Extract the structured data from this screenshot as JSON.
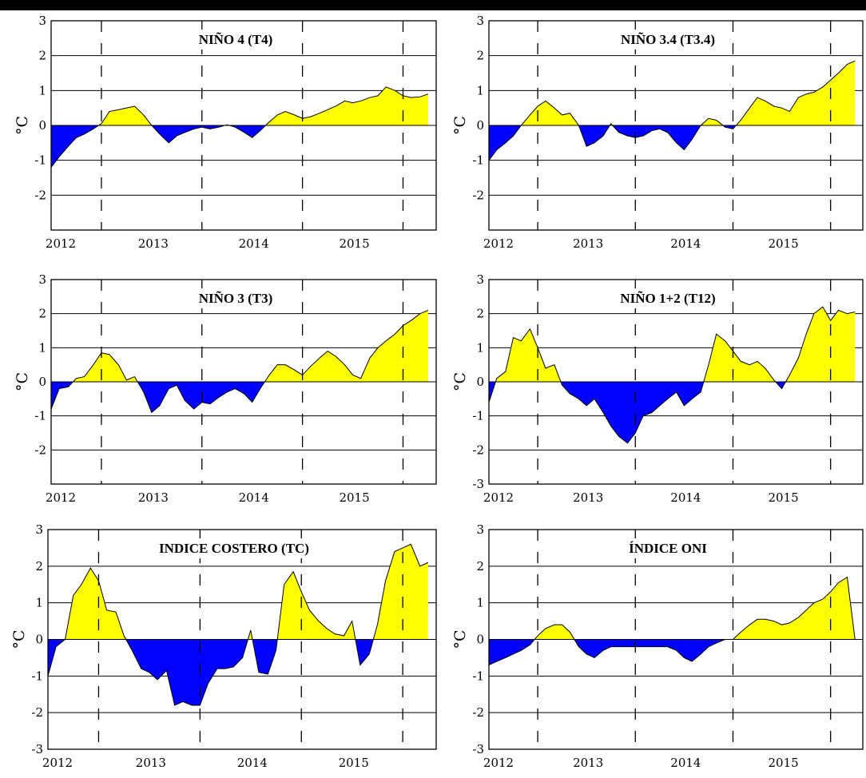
{
  "chart_data": [
    {
      "type": "area",
      "title": "NIÑO 4 (T4)",
      "ylabel": "°C",
      "xlim": [
        2012,
        2015.83
      ],
      "ylim": [
        -3,
        3
      ],
      "yticks": [
        3,
        2,
        1,
        0,
        -1,
        -2
      ],
      "xticks": [
        "2012",
        "2013",
        "2014",
        "2015"
      ],
      "dashed_x": [
        2012.5,
        2013.5,
        2014.5,
        2015.5
      ],
      "colors": {
        "positive": "#ffff00",
        "negative": "#0000ff"
      },
      "x": [
        2012.0,
        2012.08,
        2012.17,
        2012.25,
        2012.33,
        2012.42,
        2012.5,
        2012.58,
        2012.67,
        2012.75,
        2012.83,
        2012.92,
        2013.0,
        2013.08,
        2013.17,
        2013.25,
        2013.33,
        2013.42,
        2013.5,
        2013.58,
        2013.67,
        2013.75,
        2013.83,
        2013.92,
        2014.0,
        2014.08,
        2014.17,
        2014.25,
        2014.33,
        2014.42,
        2014.5,
        2014.58,
        2014.67,
        2014.75,
        2014.83,
        2014.92,
        2015.0,
        2015.08,
        2015.17,
        2015.25,
        2015.33,
        2015.42,
        2015.5,
        2015.58,
        2015.67,
        2015.75
      ],
      "y": [
        -1.2,
        -0.9,
        -0.6,
        -0.35,
        -0.25,
        -0.1,
        0.05,
        0.4,
        0.45,
        0.5,
        0.55,
        0.3,
        0.0,
        -0.25,
        -0.5,
        -0.3,
        -0.2,
        -0.1,
        -0.05,
        -0.1,
        -0.05,
        0.02,
        -0.05,
        -0.2,
        -0.35,
        -0.15,
        0.1,
        0.3,
        0.4,
        0.3,
        0.2,
        0.25,
        0.35,
        0.45,
        0.55,
        0.7,
        0.65,
        0.7,
        0.8,
        0.85,
        1.1,
        1.0,
        0.85,
        0.8,
        0.82,
        0.9
      ]
    },
    {
      "type": "area",
      "title": "NIÑO 3.4 (T3.4)",
      "ylabel": "°C",
      "xlim": [
        2012,
        2015.83
      ],
      "ylim": [
        -3,
        3
      ],
      "yticks": [
        3,
        2,
        1,
        0,
        -1,
        -2
      ],
      "xticks": [
        "2012",
        "2013",
        "2014",
        "2015"
      ],
      "dashed_x": [
        2012.5,
        2013.5,
        2014.5,
        2015.5
      ],
      "colors": {
        "positive": "#ffff00",
        "negative": "#0000ff"
      },
      "x": [
        2012.0,
        2012.08,
        2012.17,
        2012.25,
        2012.33,
        2012.42,
        2012.5,
        2012.58,
        2012.67,
        2012.75,
        2012.83,
        2012.92,
        2013.0,
        2013.08,
        2013.17,
        2013.25,
        2013.33,
        2013.42,
        2013.5,
        2013.58,
        2013.67,
        2013.75,
        2013.83,
        2013.92,
        2014.0,
        2014.08,
        2014.17,
        2014.25,
        2014.33,
        2014.42,
        2014.5,
        2014.58,
        2014.67,
        2014.75,
        2014.83,
        2014.92,
        2015.0,
        2015.08,
        2015.17,
        2015.25,
        2015.33,
        2015.42,
        2015.5,
        2015.58,
        2015.67,
        2015.75
      ],
      "y": [
        -1.0,
        -0.7,
        -0.5,
        -0.3,
        0.0,
        0.3,
        0.55,
        0.7,
        0.5,
        0.3,
        0.35,
        0.0,
        -0.6,
        -0.5,
        -0.3,
        0.05,
        -0.2,
        -0.3,
        -0.35,
        -0.3,
        -0.15,
        -0.1,
        -0.2,
        -0.5,
        -0.7,
        -0.4,
        0.0,
        0.2,
        0.15,
        -0.05,
        -0.1,
        0.15,
        0.5,
        0.8,
        0.7,
        0.55,
        0.5,
        0.4,
        0.8,
        0.9,
        0.95,
        1.1,
        1.3,
        1.5,
        1.75,
        1.85
      ]
    },
    {
      "type": "area",
      "title": "NIÑO 3 (T3)",
      "ylabel": "°C",
      "xlim": [
        2012,
        2015.83
      ],
      "ylim": [
        -3,
        3
      ],
      "yticks": [
        3,
        2,
        1,
        0,
        -1,
        -2
      ],
      "xticks": [
        "2012",
        "2013",
        "2014",
        "2015"
      ],
      "dashed_x": [
        2012.5,
        2013.5,
        2014.5,
        2015.5
      ],
      "colors": {
        "positive": "#ffff00",
        "negative": "#0000ff"
      },
      "x": [
        2012.0,
        2012.08,
        2012.17,
        2012.25,
        2012.33,
        2012.42,
        2012.5,
        2012.58,
        2012.67,
        2012.75,
        2012.83,
        2012.92,
        2013.0,
        2013.08,
        2013.17,
        2013.25,
        2013.33,
        2013.42,
        2013.5,
        2013.58,
        2013.67,
        2013.75,
        2013.83,
        2013.92,
        2014.0,
        2014.08,
        2014.17,
        2014.25,
        2014.33,
        2014.42,
        2014.5,
        2014.58,
        2014.67,
        2014.75,
        2014.83,
        2014.92,
        2015.0,
        2015.08,
        2015.17,
        2015.25,
        2015.33,
        2015.42,
        2015.5,
        2015.58,
        2015.67,
        2015.75
      ],
      "y": [
        -0.8,
        -0.2,
        -0.15,
        0.1,
        0.15,
        0.5,
        0.85,
        0.8,
        0.5,
        0.05,
        0.15,
        -0.3,
        -0.9,
        -0.7,
        -0.2,
        -0.1,
        -0.55,
        -0.8,
        -0.6,
        -0.65,
        -0.45,
        -0.3,
        -0.2,
        -0.35,
        -0.6,
        -0.2,
        0.2,
        0.5,
        0.5,
        0.35,
        0.2,
        0.45,
        0.7,
        0.9,
        0.75,
        0.5,
        0.2,
        0.1,
        0.7,
        1.0,
        1.2,
        1.4,
        1.65,
        1.8,
        2.0,
        2.1
      ]
    },
    {
      "type": "area",
      "title": "NIÑO 1+2 (T12)",
      "ylabel": "°C",
      "xlim": [
        2012,
        2015.83
      ],
      "ylim": [
        -3,
        3
      ],
      "yticks": [
        3,
        2,
        1,
        0,
        -1,
        -2,
        -3
      ],
      "xticks": [
        "2012",
        "2013",
        "2014",
        "2015"
      ],
      "dashed_x": [
        2012.5,
        2013.5,
        2014.5,
        2015.5
      ],
      "colors": {
        "positive": "#ffff00",
        "negative": "#0000ff"
      },
      "x": [
        2012.0,
        2012.08,
        2012.17,
        2012.25,
        2012.33,
        2012.42,
        2012.5,
        2012.58,
        2012.67,
        2012.75,
        2012.83,
        2012.92,
        2013.0,
        2013.08,
        2013.17,
        2013.25,
        2013.33,
        2013.42,
        2013.5,
        2013.58,
        2013.67,
        2013.75,
        2013.83,
        2013.92,
        2014.0,
        2014.08,
        2014.17,
        2014.25,
        2014.33,
        2014.42,
        2014.5,
        2014.58,
        2014.67,
        2014.75,
        2014.83,
        2014.92,
        2015.0,
        2015.08,
        2015.17,
        2015.25,
        2015.33,
        2015.42,
        2015.5,
        2015.58,
        2015.67,
        2015.75
      ],
      "y": [
        -0.6,
        0.1,
        0.3,
        1.3,
        1.2,
        1.55,
        1.0,
        0.4,
        0.5,
        -0.1,
        -0.35,
        -0.5,
        -0.7,
        -0.5,
        -0.9,
        -1.3,
        -1.6,
        -1.8,
        -1.5,
        -1.0,
        -0.9,
        -0.7,
        -0.5,
        -0.3,
        -0.7,
        -0.5,
        -0.3,
        0.5,
        1.4,
        1.2,
        0.9,
        0.6,
        0.5,
        0.6,
        0.4,
        0.05,
        -0.2,
        0.2,
        0.7,
        1.4,
        2.0,
        2.2,
        1.8,
        2.1,
        2.0,
        2.05
      ]
    },
    {
      "type": "area",
      "title": "INDICE COSTERO (TC)",
      "ylabel": "°C",
      "xlim": [
        2012,
        2015.83
      ],
      "ylim": [
        -3,
        3
      ],
      "yticks": [
        3,
        2,
        1,
        0,
        -1,
        -2,
        -3
      ],
      "xticks": [
        "2012",
        "2013",
        "2014",
        "2015"
      ],
      "dashed_x": [
        2012.5,
        2013.5,
        2014.5,
        2015.5
      ],
      "colors": {
        "positive": "#ffff00",
        "negative": "#0000ff"
      },
      "x": [
        2012.0,
        2012.08,
        2012.17,
        2012.25,
        2012.33,
        2012.42,
        2012.5,
        2012.58,
        2012.67,
        2012.75,
        2012.83,
        2012.92,
        2013.0,
        2013.08,
        2013.17,
        2013.25,
        2013.33,
        2013.42,
        2013.5,
        2013.58,
        2013.67,
        2013.75,
        2013.83,
        2013.92,
        2014.0,
        2014.08,
        2014.17,
        2014.25,
        2014.33,
        2014.42,
        2014.5,
        2014.58,
        2014.67,
        2014.75,
        2014.83,
        2014.92,
        2015.0,
        2015.08,
        2015.17,
        2015.25,
        2015.33,
        2015.42,
        2015.5,
        2015.58,
        2015.67,
        2015.75
      ],
      "y": [
        -1.0,
        -0.2,
        0.0,
        1.2,
        1.5,
        1.95,
        1.6,
        0.8,
        0.75,
        0.1,
        -0.3,
        -0.8,
        -0.9,
        -1.1,
        -0.85,
        -1.8,
        -1.7,
        -1.8,
        -1.8,
        -1.2,
        -0.8,
        -0.8,
        -0.75,
        -0.5,
        0.25,
        -0.9,
        -0.95,
        -0.3,
        1.5,
        1.85,
        1.3,
        0.8,
        0.5,
        0.3,
        0.15,
        0.1,
        0.5,
        -0.7,
        -0.4,
        0.4,
        1.6,
        2.4,
        2.5,
        2.6,
        2.0,
        2.1
      ]
    },
    {
      "type": "area",
      "title": "ÍNDICE ONI",
      "ylabel": "°C",
      "xlim": [
        2012,
        2015.83
      ],
      "ylim": [
        -3,
        3
      ],
      "yticks": [
        3,
        2,
        1,
        0,
        -1,
        -2,
        -3
      ],
      "xticks": [
        "2012",
        "2013",
        "2014",
        "2015"
      ],
      "dashed_x": [
        2012.5,
        2013.5,
        2014.5,
        2015.5
      ],
      "colors": {
        "positive": "#ffff00",
        "negative": "#0000ff"
      },
      "x": [
        2012.0,
        2012.08,
        2012.17,
        2012.25,
        2012.33,
        2012.42,
        2012.5,
        2012.58,
        2012.67,
        2012.75,
        2012.83,
        2012.92,
        2013.0,
        2013.08,
        2013.17,
        2013.25,
        2013.33,
        2013.42,
        2013.5,
        2013.58,
        2013.67,
        2013.75,
        2013.83,
        2013.92,
        2014.0,
        2014.08,
        2014.17,
        2014.25,
        2014.33,
        2014.42,
        2014.5,
        2014.58,
        2014.67,
        2014.75,
        2014.83,
        2014.92,
        2015.0,
        2015.08,
        2015.17,
        2015.25,
        2015.33,
        2015.42,
        2015.5,
        2015.58,
        2015.67,
        2015.75
      ],
      "y": [
        -0.7,
        -0.6,
        -0.5,
        -0.4,
        -0.3,
        -0.15,
        0.1,
        0.3,
        0.4,
        0.4,
        0.2,
        -0.2,
        -0.4,
        -0.5,
        -0.3,
        -0.2,
        -0.2,
        -0.2,
        -0.2,
        -0.2,
        -0.2,
        -0.2,
        -0.2,
        -0.3,
        -0.5,
        -0.6,
        -0.4,
        -0.2,
        -0.1,
        0.0,
        0.0,
        0.2,
        0.4,
        0.55,
        0.55,
        0.5,
        0.4,
        0.45,
        0.6,
        0.8,
        1.0,
        1.1,
        1.3,
        1.55,
        1.7,
        0.0
      ]
    }
  ]
}
